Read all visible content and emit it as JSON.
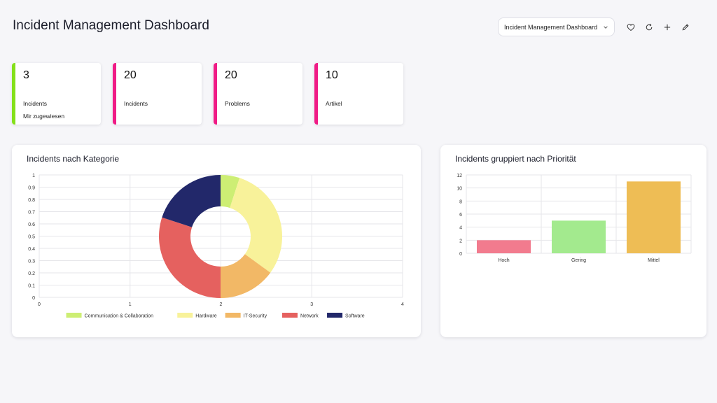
{
  "header": {
    "title": "Incident Management Dashboard",
    "dashboard_select": "Incident Management Dashboard"
  },
  "toolbar": {
    "icons": [
      "heart-icon",
      "refresh-icon",
      "plus-icon",
      "pencil-icon"
    ]
  },
  "kpis": [
    {
      "value": "3",
      "label": "Incidents",
      "sub": "Mir zugewiesen",
      "color": "#84e01a"
    },
    {
      "value": "20",
      "label": "Incidents",
      "sub": "",
      "color": "#f01b86"
    },
    {
      "value": "20",
      "label": "Problems",
      "sub": "",
      "color": "#f01b86"
    },
    {
      "value": "10",
      "label": "Artikel",
      "sub": "",
      "color": "#f01b86"
    }
  ],
  "donut_card": {
    "title": "Incidents nach Kategorie"
  },
  "bar_card": {
    "title": "Incidents gruppiert nach Priorität"
  },
  "chart_data": [
    {
      "type": "pie",
      "title": "Incidents nach Kategorie",
      "categories": [
        "Communication & Collaboration",
        "Hardware",
        "IT-Security",
        "Network",
        "Software"
      ],
      "values": [
        1,
        6,
        3,
        6,
        4
      ],
      "colors": [
        "#cdee74",
        "#f8f29a",
        "#f2b866",
        "#e5615f",
        "#22286a"
      ],
      "x_ticks": [
        "0",
        "1",
        "2",
        "3",
        "4"
      ],
      "y_ticks": [
        "0",
        "0.1",
        "0.2",
        "0.3",
        "0.4",
        "0.5",
        "0.6",
        "0.7",
        "0.8",
        "0.9",
        "1"
      ],
      "xlim": [
        0,
        4
      ],
      "ylim": [
        0,
        1
      ],
      "legend": "bottom",
      "grid": true
    },
    {
      "type": "bar",
      "title": "Incidents gruppiert nach Priorität",
      "categories": [
        "Hoch",
        "Gering",
        "Mittel"
      ],
      "values": [
        2,
        5,
        11
      ],
      "colors": [
        "#f27b8e",
        "#a3ea8e",
        "#eebd55"
      ],
      "y_ticks": [
        "0",
        "2",
        "4",
        "6",
        "8",
        "10",
        "12"
      ],
      "ylim": [
        0,
        12
      ],
      "grid": true
    }
  ]
}
